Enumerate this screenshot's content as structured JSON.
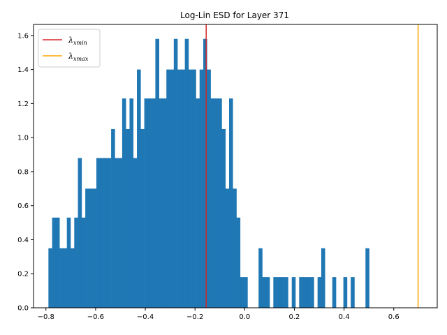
{
  "chart_data": {
    "type": "bar",
    "title": "Log-Lin ESD for Layer 371",
    "xlabel": "",
    "ylabel": "",
    "xlim": [
      -0.85,
      0.775
    ],
    "ylim": [
      0,
      1.665
    ],
    "xticks": [
      -0.8,
      -0.6,
      -0.4,
      -0.2,
      0.0,
      0.2,
      0.4,
      0.6
    ],
    "xtick_labels": [
      "−0.8",
      "−0.6",
      "−0.4",
      "−0.2",
      "0.0",
      "0.2",
      "0.4",
      "0.6"
    ],
    "yticks": [
      0.0,
      0.2,
      0.4,
      0.6,
      0.8,
      1.0,
      1.2,
      1.4,
      1.6
    ],
    "ytick_labels": [
      "0.0",
      "0.2",
      "0.4",
      "0.6",
      "0.8",
      "1.0",
      "1.2",
      "1.4",
      "1.6"
    ],
    "bin_start": -0.79,
    "bin_width": 0.01484,
    "bar_color": "#1f77b4",
    "values": [
      0.35,
      0.53,
      0.53,
      0.35,
      0.35,
      0.53,
      0.35,
      0.53,
      0.88,
      0.53,
      0.7,
      0.7,
      0.7,
      0.88,
      0.88,
      0.88,
      0.88,
      1.05,
      0.88,
      0.88,
      1.23,
      1.05,
      1.23,
      0.88,
      1.4,
      1.05,
      1.23,
      1.23,
      1.23,
      1.58,
      1.23,
      1.23,
      1.4,
      1.4,
      1.58,
      1.4,
      1.4,
      1.58,
      1.4,
      1.4,
      1.23,
      1.4,
      1.58,
      1.4,
      1.23,
      1.23,
      1.23,
      1.05,
      0.7,
      1.23,
      0.7,
      0.53,
      0.18,
      0.18,
      0.0,
      0.0,
      0.0,
      0.35,
      0.18,
      0.18,
      0.0,
      0.18,
      0.18,
      0.18,
      0.18,
      0.0,
      0.18,
      0.0,
      0.18,
      0.18,
      0.18,
      0.18,
      0.0,
      0.18,
      0.35,
      0.0,
      0.0,
      0.18,
      0.0,
      0.0,
      0.18,
      0.0,
      0.18,
      0.0,
      0.0,
      0.0,
      0.35
    ],
    "vlines": [
      {
        "name": "λxmin",
        "x": -0.155,
        "color": "#d62728"
      },
      {
        "name": "λxmax",
        "x": 0.698,
        "color": "#ffa500"
      }
    ],
    "legend": {
      "placement": "top-left",
      "entries": [
        {
          "symbol": "λ",
          "sub": "xmin",
          "color": "#d62728"
        },
        {
          "symbol": "λ",
          "sub": "xmax",
          "color": "#ffa500"
        }
      ]
    },
    "grid": false
  }
}
